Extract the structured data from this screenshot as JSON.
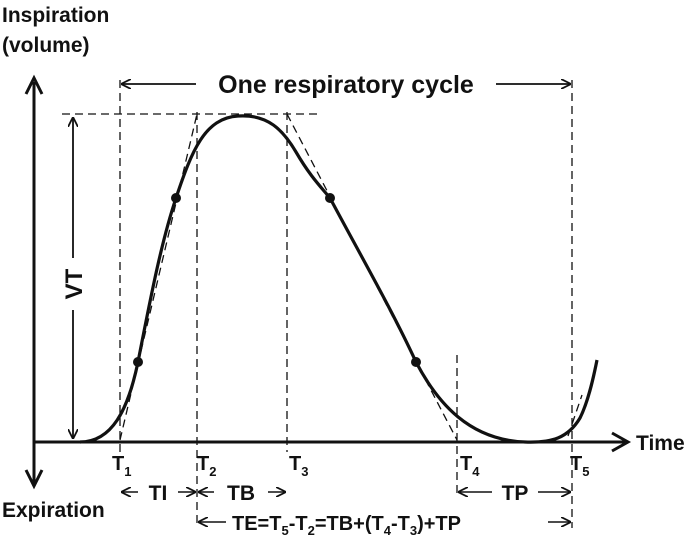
{
  "axes": {
    "y_top_label_line1": "Inspiration",
    "y_top_label_line2": "(volume)",
    "y_bottom_label": "Expiration",
    "x_label": "Time"
  },
  "annotations": {
    "cycle_label": "One respiratory cycle",
    "vt_label": "VT",
    "ti_label": "TI",
    "tb_label": "TB",
    "tp_label": "TP",
    "te_formula": {
      "p1": "TE=T",
      "s1": "5",
      "p2": "-T",
      "s2": "2",
      "p3": "=TB+(T",
      "s3": "4",
      "p4": "-T",
      "s4": "3",
      "p5": ")+TP"
    }
  },
  "time_markers": [
    {
      "base": "T",
      "sub": "1"
    },
    {
      "base": "T",
      "sub": "2"
    },
    {
      "base": "T",
      "sub": "3"
    },
    {
      "base": "T",
      "sub": "4"
    },
    {
      "base": "T",
      "sub": "5"
    }
  ]
}
